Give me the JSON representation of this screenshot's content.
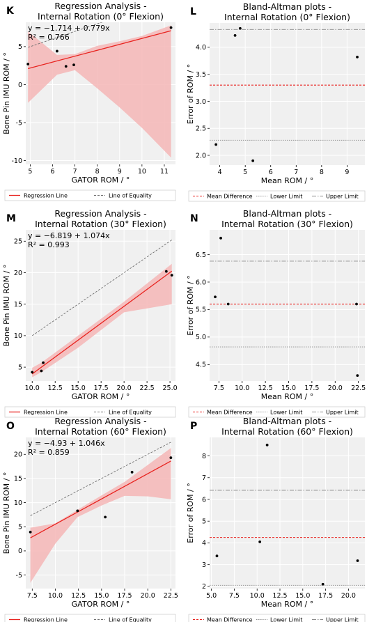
{
  "chart_data": [
    {
      "panel_letter": "K",
      "type": "scatter",
      "title_lines": [
        "Regression Analysis -",
        "Internal Rotation (0° Flexion)"
      ],
      "xlabel": "GATOR ROM / °",
      "ylabel": "Bone Pin IMU ROM / °",
      "xlim": [
        4.8,
        11.5
      ],
      "ylim": [
        -10.5,
        8.2
      ],
      "xticks": [
        5,
        6,
        7,
        8,
        9,
        10,
        11
      ],
      "yticks": [
        -10,
        -5,
        0,
        5
      ],
      "grid": true,
      "points": {
        "x": [
          4.9,
          6.2,
          6.6,
          6.95,
          11.3
        ],
        "y": [
          2.7,
          4.4,
          2.4,
          2.6,
          7.5
        ]
      },
      "regression": {
        "intercept": -1.714,
        "slope": 0.779
      },
      "confidence_band": {
        "x": [
          4.9,
          6.2,
          7.0,
          8.0,
          9.0,
          10.0,
          11.3
        ],
        "lower": [
          -2.4,
          1.3,
          1.9,
          -0.5,
          -3.0,
          -5.7,
          -9.6
        ],
        "upper": [
          7.0,
          3.9,
          4.0,
          5.1,
          5.7,
          6.4,
          7.8
        ]
      },
      "equality_line": true,
      "equation_text": "y = −1.714 + 0.779x",
      "r2_text": "R² = 0.766",
      "legend": [
        "Regression Line",
        "Line of Equality"
      ],
      "legend_position": "below"
    },
    {
      "panel_letter": "L",
      "type": "scatter",
      "title_lines": [
        "Bland-Altman plots -",
        "Internal Rotation (0° Flexion)"
      ],
      "xlabel": "Mean ROM / °",
      "ylabel": "Error of ROM / °",
      "xlim": [
        3.6,
        9.7
      ],
      "ylim": [
        1.82,
        4.45
      ],
      "xticks": [
        4,
        5,
        6,
        7,
        8,
        9
      ],
      "yticks": [
        2.0,
        2.5,
        3.0,
        3.5,
        4.0
      ],
      "ytick_decimals": 1,
      "grid": true,
      "points": {
        "x": [
          3.85,
          4.6,
          4.8,
          5.3,
          9.4
        ],
        "y": [
          2.2,
          4.22,
          4.35,
          1.9,
          3.82
        ]
      },
      "mean_difference": 3.3,
      "lower_limit": 2.28,
      "upper_limit": 4.33,
      "legend": [
        "Mean Difference",
        "Lower Limit",
        "Upper Limit"
      ],
      "legend_position": "below"
    },
    {
      "panel_letter": "M",
      "type": "scatter",
      "title_lines": [
        "Regression Analysis -",
        "Internal Rotation (30° Flexion)"
      ],
      "xlabel": "GATOR ROM / °",
      "ylabel": "Bone Pin IMU ROM / °",
      "xlim": [
        9.3,
        25.6
      ],
      "ylim": [
        2.8,
        26.8
      ],
      "xticks": [
        10.0,
        12.5,
        15.0,
        17.5,
        20.0,
        22.5,
        25.0
      ],
      "xtick_decimals": 1,
      "yticks": [
        5,
        10,
        15,
        20,
        25
      ],
      "grid": true,
      "points": {
        "x": [
          10.0,
          11.0,
          11.2,
          24.6,
          25.2
        ],
        "y": [
          4.2,
          4.4,
          5.7,
          20.2,
          19.6
        ]
      },
      "regression": {
        "intercept": -6.819,
        "slope": 1.074
      },
      "confidence_band": {
        "x": [
          10.0,
          11.0,
          15.0,
          20.0,
          25.2
        ],
        "lower": [
          3.4,
          4.2,
          8.1,
          13.7,
          15.0
        ],
        "upper": [
          4.9,
          5.7,
          10.0,
          15.4,
          21.4
        ]
      },
      "equality_line": true,
      "equation_text": "y = −6.819 + 1.074x",
      "r2_text": "R² = 0.993",
      "legend": [
        "Regression Line",
        "Line of Equality"
      ],
      "legend_position": "below"
    },
    {
      "panel_letter": "N",
      "type": "scatter",
      "title_lines": [
        "Bland-Altman plots -",
        "Internal Rotation (30° Flexion)"
      ],
      "xlabel": "Mean ROM / °",
      "ylabel": "Error of ROM / °",
      "xlim": [
        6.5,
        23.2
      ],
      "ylim": [
        4.2,
        6.95
      ],
      "xticks": [
        7.5,
        10.0,
        12.5,
        15.0,
        17.5,
        20.0,
        22.5
      ],
      "xtick_decimals": 1,
      "yticks": [
        4.5,
        5.0,
        5.5,
        6.0,
        6.5
      ],
      "ytick_decimals": 1,
      "grid": true,
      "points": {
        "x": [
          7.1,
          7.7,
          8.5,
          22.3,
          22.4
        ],
        "y": [
          5.73,
          6.8,
          5.6,
          5.6,
          4.3
        ]
      },
      "mean_difference": 5.6,
      "lower_limit": 4.82,
      "upper_limit": 6.38,
      "legend": [
        "Mean Difference",
        "Lower Limit",
        "Upper Limit"
      ],
      "legend_position": "below"
    },
    {
      "panel_letter": "O",
      "type": "scatter",
      "title_lines": [
        "Regression Analysis -",
        "Internal Rotation (60° Flexion)"
      ],
      "xlabel": "GATOR ROM / °",
      "ylabel": "Bone Pin IMU ROM / °",
      "xlim": [
        6.8,
        23.0
      ],
      "ylim": [
        -7.8,
        23.5
      ],
      "xticks": [
        7.5,
        10.0,
        12.5,
        15.0,
        17.5,
        20.0,
        22.5
      ],
      "xtick_decimals": 1,
      "yticks": [
        -5,
        0,
        5,
        10,
        15,
        20
      ],
      "grid": true,
      "points": {
        "x": [
          7.3,
          12.4,
          15.4,
          18.3,
          22.5
        ],
        "y": [
          3.9,
          8.3,
          7.0,
          16.3,
          19.3
        ]
      },
      "regression": {
        "intercept": -4.93,
        "slope": 1.046
      },
      "confidence_band": {
        "x": [
          7.3,
          10.0,
          12.4,
          15.0,
          17.5,
          20.0,
          22.5
        ],
        "lower": [
          -6.6,
          1.5,
          7.0,
          9.4,
          11.4,
          11.3,
          10.7
        ],
        "upper": [
          4.8,
          5.7,
          8.5,
          11.5,
          14.3,
          17.8,
          21.3
        ]
      },
      "equality_line": true,
      "equation_text": "y = −4.93 + 1.046x",
      "r2_text": "R² = 0.859",
      "legend": [
        "Regression Line",
        "Line of Equality"
      ],
      "legend_position": "below"
    },
    {
      "panel_letter": "P",
      "type": "scatter",
      "title_lines": [
        "Bland-Altman plots -",
        "Internal Rotation (60° Flexion)"
      ],
      "xlabel": "Mean ROM / °",
      "ylabel": "Error of ROM / °",
      "xlim": [
        4.8,
        21.8
      ],
      "ylim": [
        1.9,
        8.85
      ],
      "xticks": [
        5.0,
        7.5,
        10.0,
        12.5,
        15.0,
        17.5,
        20.0
      ],
      "xtick_decimals": 1,
      "yticks": [
        2,
        3,
        4,
        5,
        6,
        7,
        8
      ],
      "grid": true,
      "points": {
        "x": [
          5.6,
          10.3,
          11.1,
          17.2,
          21.0
        ],
        "y": [
          3.4,
          4.05,
          8.5,
          2.1,
          3.18
        ]
      },
      "mean_difference": 4.25,
      "lower_limit": 2.05,
      "upper_limit": 6.42,
      "legend": [
        "Mean Difference",
        "Lower Limit",
        "Upper Limit"
      ],
      "legend_position": "below"
    }
  ],
  "colors": {
    "panel_background": "#f0f0f0",
    "grid": "#ffffff",
    "regression_line": "#e8231f",
    "confidence_band": "#f4b6b6",
    "equality_line": "#6f6f6f",
    "points": "#000000",
    "mean_difference": "#e8231f",
    "limit_lines": "#8a8a8a"
  }
}
